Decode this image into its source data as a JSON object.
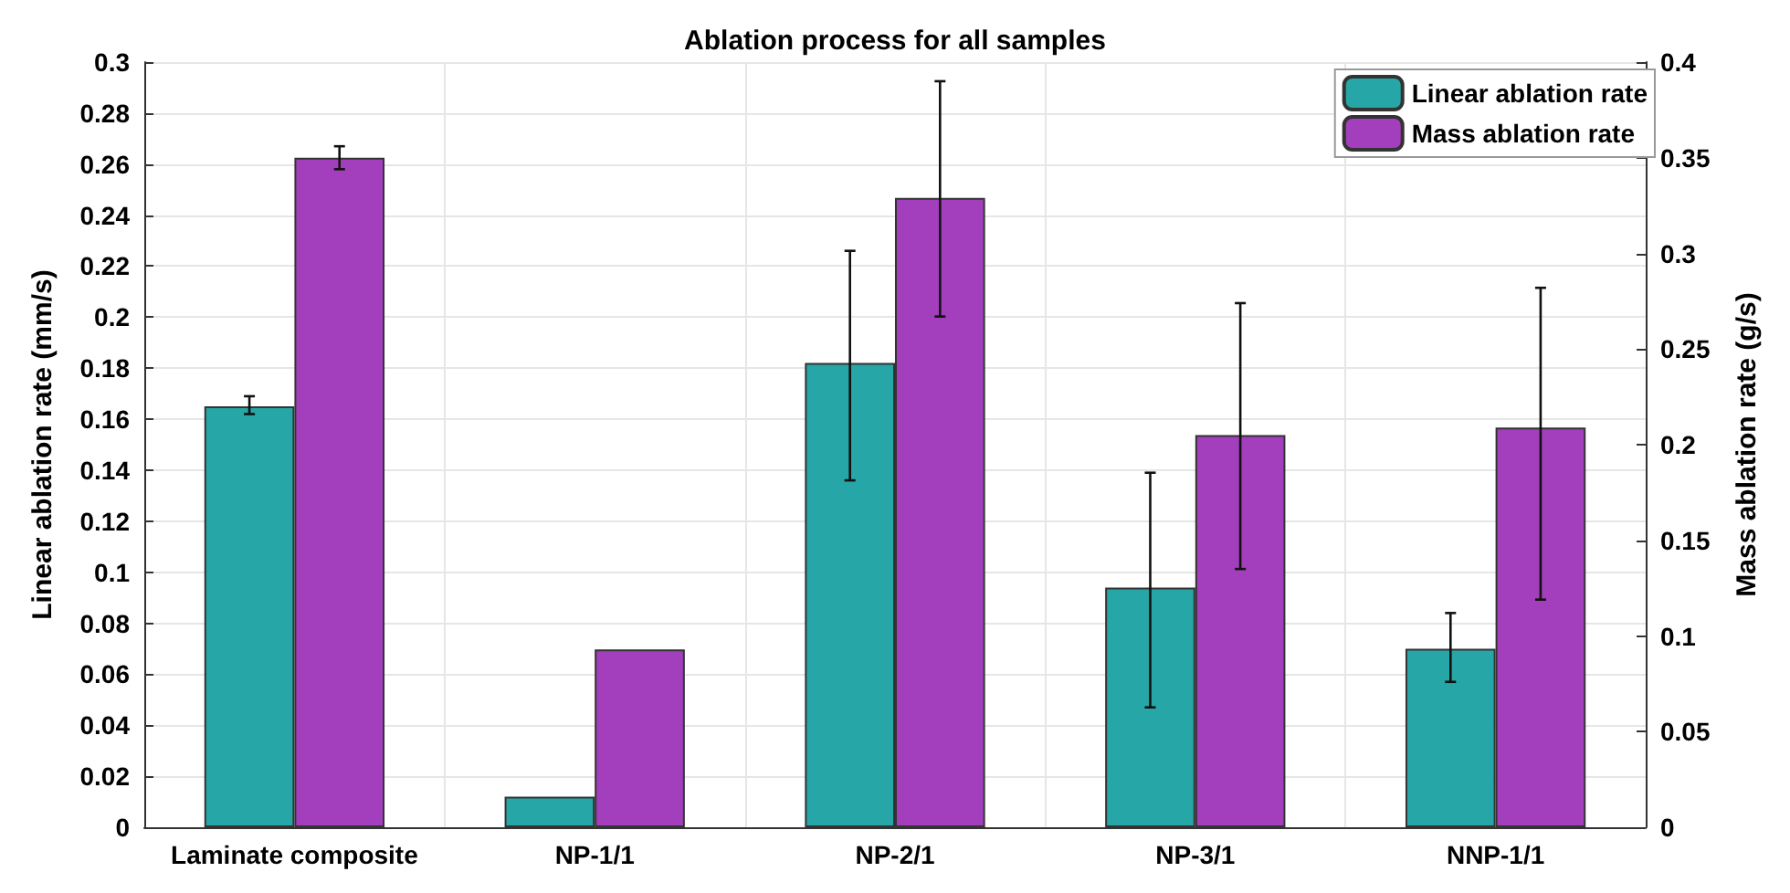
{
  "chart_data": {
    "type": "bar",
    "title": "Ablation process for all samples",
    "categories": [
      "Laminate composite",
      "NP-1/1",
      "NP-2/1",
      "NP-3/1",
      "NNP-1/1"
    ],
    "ylabel": "Linear ablation rate (mm/s)",
    "y2label": "Mass ablation rate (g/s)",
    "series": [
      {
        "name": "Linear ablation rate",
        "color": "#26a6a6",
        "values": [
          0.165,
          0.012,
          0.182,
          0.094,
          0.07
        ],
        "errors": [
          [
            0.162,
            0.169
          ],
          null,
          [
            0.136,
            0.226
          ],
          [
            0.047,
            0.139
          ],
          [
            0.057,
            0.084
          ]
        ]
      },
      {
        "name": "Mass ablation rate",
        "color": "#a33fbd",
        "axis": "y2",
        "values": [
          0.35,
          0.093,
          0.329,
          0.205,
          0.209
        ],
        "errors": [
          [
            0.344,
            0.356
          ],
          null,
          [
            0.267,
            0.39
          ],
          [
            0.135,
            0.274
          ],
          [
            0.119,
            0.282
          ]
        ]
      }
    ],
    "ylim": [
      0,
      0.3
    ],
    "yticks": [
      0,
      0.02,
      0.04,
      0.06,
      0.08,
      0.1,
      0.12,
      0.14,
      0.16,
      0.18,
      0.2,
      0.22,
      0.24,
      0.26,
      0.28,
      0.3
    ],
    "y2lim": [
      0,
      0.4
    ],
    "y2ticks": [
      0,
      0.05,
      0.1,
      0.15,
      0.2,
      0.25,
      0.3,
      0.35,
      0.4
    ],
    "grid": true,
    "legend": "top right"
  }
}
